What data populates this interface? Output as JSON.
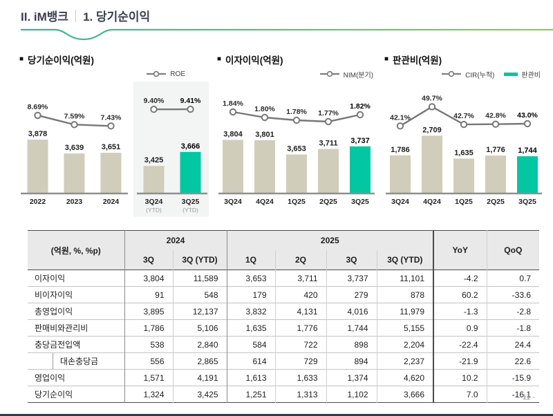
{
  "page": {
    "title_section": "II. iM뱅크",
    "title_sub": "1. 당기순이익",
    "page_number": "- 11 -"
  },
  "colors": {
    "teal": "#02c7a2",
    "beige": "#d0cdbb",
    "line_gray": "#777777",
    "panel_gray": "#f3f4f4",
    "underline_left": "#33b795",
    "underline_mid": "#62c17d",
    "underline_right": "#94ce52"
  },
  "chart_data": [
    {
      "type": "bar+line",
      "title": "당기순이익(억원)",
      "legend": [
        {
          "marker": "line",
          "label": "ROE"
        }
      ],
      "legend_position": "top-right",
      "bar_ylim": [
        2950,
        3950
      ],
      "line_ylim": [
        6.8,
        10.4
      ],
      "groups": [
        {
          "panel": false,
          "items": [
            {
              "cat": "2022",
              "bar": 3878,
              "bar_label": "3,878",
              "line": 8.69,
              "line_label": "8.69%"
            },
            {
              "cat": "2023",
              "bar": 3639,
              "bar_label": "3,639",
              "line": 7.59,
              "line_label": "7.59%"
            },
            {
              "cat": "2024",
              "bar": 3651,
              "bar_label": "3,651",
              "line": 7.43,
              "line_label": "7.43%"
            }
          ]
        },
        {
          "panel": true,
          "items": [
            {
              "cat": "3Q24",
              "sub": "(YTD)",
              "bar": 3425,
              "bar_label": "3,425",
              "line": 9.4,
              "line_label": "9.40%"
            },
            {
              "cat": "3Q25",
              "sub": "(YTD)",
              "bar": 3666,
              "bar_label": "3,666",
              "line": 9.41,
              "line_label": "9.41%",
              "emphasis": true
            }
          ]
        }
      ]
    },
    {
      "type": "bar+line",
      "title": "이자이익(억원)",
      "legend": [
        {
          "marker": "line",
          "label": "NIM(분기)"
        }
      ],
      "legend_position": "top-right",
      "bar_ylim": [
        3250,
        3850
      ],
      "line_ylim": [
        1.7,
        1.92
      ],
      "groups": [
        {
          "panel": false,
          "items": [
            {
              "cat": "3Q24",
              "bar": 3804,
              "bar_label": "3,804",
              "line": 1.84,
              "line_label": "1.84%"
            },
            {
              "cat": "4Q24",
              "bar": 3801,
              "bar_label": "3,801",
              "line": 1.8,
              "line_label": "1.80%"
            },
            {
              "cat": "1Q25",
              "bar": 3653,
              "bar_label": "3,653",
              "line": 1.78,
              "line_label": "1.78%"
            },
            {
              "cat": "2Q25",
              "bar": 3711,
              "bar_label": "3,711",
              "line": 1.77,
              "line_label": "1.77%"
            },
            {
              "cat": "3Q25",
              "bar": 3737,
              "bar_label": "3,737",
              "line": 1.82,
              "line_label": "1.82%",
              "emphasis": true
            }
          ]
        }
      ]
    },
    {
      "type": "bar+line",
      "title": "판관비(억원)",
      "legend": [
        {
          "marker": "line",
          "label": "CIR(누적)"
        },
        {
          "marker": "bar",
          "label": "판관비"
        }
      ],
      "legend_position": "top-right",
      "bar_ylim": [
        0,
        2720
      ],
      "line_ylim": [
        40,
        52
      ],
      "groups": [
        {
          "panel": false,
          "items": [
            {
              "cat": "3Q24",
              "bar": 1786,
              "bar_label": "1,786",
              "line": 42.1,
              "line_label": "42.1%"
            },
            {
              "cat": "4Q24",
              "bar": 2709,
              "bar_label": "2,709",
              "line": 49.7,
              "line_label": "49.7%"
            },
            {
              "cat": "1Q25",
              "bar": 1635,
              "bar_label": "1,635",
              "line": 42.7,
              "line_label": "42.7%"
            },
            {
              "cat": "2Q25",
              "bar": 1776,
              "bar_label": "1,776",
              "line": 42.8,
              "line_label": "42.8%"
            },
            {
              "cat": "3Q25",
              "bar": 1744,
              "bar_label": "1,744",
              "line": 43.0,
              "line_label": "43.0%",
              "emphasis": true
            }
          ]
        }
      ]
    }
  ],
  "table": {
    "unit_label": "(억원, %, %p)",
    "col_groups": [
      {
        "label": "2024",
        "span": 2
      },
      {
        "label": "2025",
        "span": 4
      }
    ],
    "sub_headers": [
      "3Q",
      "3Q (YTD)",
      "1Q",
      "2Q",
      "3Q",
      "3Q (YTD)"
    ],
    "yoy_label": "YoY",
    "qoq_label": "QoQ",
    "rows": [
      {
        "label": "이자이익",
        "indent": false,
        "values": [
          "3,804",
          "11,589",
          "3,653",
          "3,711",
          "3,737",
          "11,101",
          "-4.2",
          "0.7"
        ]
      },
      {
        "label": "비이자이익",
        "indent": false,
        "values": [
          "91",
          "548",
          "179",
          "420",
          "279",
          "878",
          "60.2",
          "-33.6"
        ]
      },
      {
        "label": "총영업이익",
        "indent": false,
        "values": [
          "3,895",
          "12,137",
          "3,832",
          "4,131",
          "4,016",
          "11,979",
          "-1.3",
          "-2.8"
        ]
      },
      {
        "label": "판매비와관리비",
        "indent": false,
        "values": [
          "1,786",
          "5,106",
          "1,635",
          "1,776",
          "1,744",
          "5,155",
          "0.9",
          "-1.8"
        ]
      },
      {
        "label": "충당금전입액",
        "indent": false,
        "values": [
          "538",
          "2,840",
          "584",
          "722",
          "898",
          "2,204",
          "-22.4",
          "24.4"
        ]
      },
      {
        "label": "대손충당금",
        "indent": true,
        "values": [
          "556",
          "2,865",
          "614",
          "729",
          "894",
          "2,237",
          "-21.9",
          "22.6"
        ]
      },
      {
        "label": "영업이익",
        "indent": false,
        "values": [
          "1,571",
          "4,191",
          "1,613",
          "1,633",
          "1,374",
          "4,620",
          "10.2",
          "-15.9"
        ]
      },
      {
        "label": "당기순이익",
        "indent": false,
        "values": [
          "1,324",
          "3,425",
          "1,251",
          "1,313",
          "1,102",
          "3,666",
          "7.0",
          "-16.1"
        ]
      }
    ]
  }
}
